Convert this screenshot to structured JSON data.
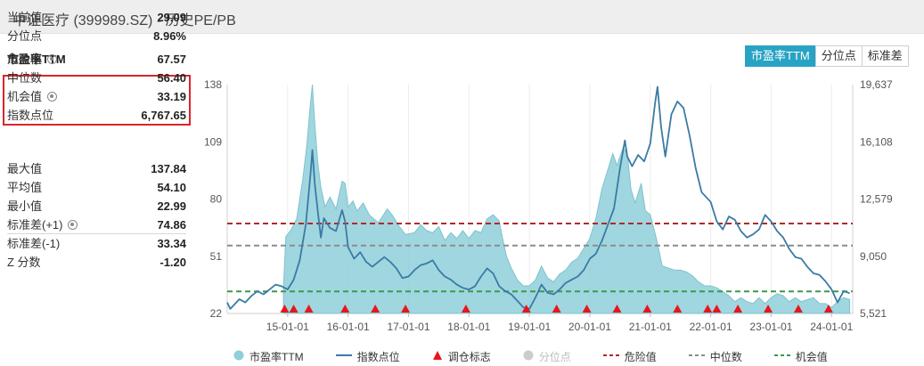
{
  "window": {
    "title": "中证医疗 (399989.SZ) - 历史PE/PB"
  },
  "panel": {
    "title": "市盈率TTM"
  },
  "tabs": [
    {
      "label": "市盈率TTM",
      "active": true
    },
    {
      "label": "分位点",
      "active": false
    },
    {
      "label": "标准差",
      "active": false
    }
  ],
  "stats": {
    "group1": [
      {
        "label": "当前值",
        "value": "29.09",
        "gear": false
      },
      {
        "label": "分位点",
        "value": "8.96%",
        "gear": false
      },
      {
        "label": "危险值",
        "value": "67.57",
        "gear": true
      },
      {
        "label": "中位数",
        "value": "56.40",
        "gear": false
      },
      {
        "label": "机会值",
        "value": "33.19",
        "gear": true
      },
      {
        "label": "指数点位",
        "value": "6,767.65",
        "gear": false
      }
    ],
    "group2": [
      {
        "label": "最大值",
        "value": "137.84",
        "gear": false
      },
      {
        "label": "平均值",
        "value": "54.10",
        "gear": false
      },
      {
        "label": "最小值",
        "value": "22.99",
        "gear": false
      },
      {
        "label": "标准差(+1)",
        "value": "74.86",
        "gear": true
      },
      {
        "label": "标准差(-1)",
        "value": "33.34",
        "gear": false
      },
      {
        "label": "Z 分数",
        "value": "-1.20",
        "gear": false
      }
    ]
  },
  "colors": {
    "pe_fill": "#8fcfd9",
    "index_line": "#3a7ba5",
    "marker": "#e8151b",
    "danger": "#b02a2a",
    "median": "#8c8c8c",
    "opportunity": "#3a9a4a",
    "accent": "#29a3c4"
  },
  "legend": [
    {
      "label": "市盈率TTM",
      "symbol": "circle",
      "color": "#8fcfd9",
      "active": true
    },
    {
      "label": "指数点位",
      "symbol": "line",
      "color": "#3a7ba5",
      "active": true
    },
    {
      "label": "调仓标志",
      "symbol": "triangle",
      "color": "#e8151b",
      "active": true
    },
    {
      "label": "分位点",
      "symbol": "circle",
      "color": "#cccccc",
      "active": false
    },
    {
      "label": "危险值",
      "symbol": "dash",
      "color": "#b02a2a",
      "active": true
    },
    {
      "label": "中位数",
      "symbol": "dash",
      "color": "#8c8c8c",
      "active": true
    },
    {
      "label": "机会值",
      "symbol": "dash",
      "color": "#3a9a4a",
      "active": true
    }
  ],
  "chart_data": {
    "type": "area",
    "x_ticks": [
      "15-01-01",
      "16-01-01",
      "17-01-01",
      "18-01-01",
      "19-01-01",
      "20-01-01",
      "21-01-01",
      "22-01-01",
      "23-01-01",
      "24-01-01"
    ],
    "x_range": [
      2014.0,
      2024.35
    ],
    "y_left": {
      "ticks": [
        "138",
        "109",
        "80",
        "51",
        "22"
      ],
      "range": [
        22,
        138
      ]
    },
    "y_right": {
      "ticks": [
        "19,637",
        "16,108",
        "12,579",
        "9,050",
        "5,521"
      ],
      "range": [
        5521,
        19637
      ]
    },
    "reference_lines": {
      "danger": 67.57,
      "median": 56.4,
      "opportunity": 33.19
    },
    "series": [
      {
        "name": "市盈率TTM",
        "axis": "left",
        "points": [
          [
            2014.93,
            35
          ],
          [
            2014.97,
            61
          ],
          [
            2015.05,
            64
          ],
          [
            2015.15,
            70
          ],
          [
            2015.25,
            90
          ],
          [
            2015.32,
            108
          ],
          [
            2015.37,
            126
          ],
          [
            2015.41,
            138
          ],
          [
            2015.45,
            118
          ],
          [
            2015.5,
            98
          ],
          [
            2015.55,
            86
          ],
          [
            2015.62,
            76
          ],
          [
            2015.7,
            81
          ],
          [
            2015.8,
            75
          ],
          [
            2015.9,
            89
          ],
          [
            2015.95,
            88
          ],
          [
            2016.0,
            76
          ],
          [
            2016.08,
            79
          ],
          [
            2016.15,
            74
          ],
          [
            2016.25,
            78
          ],
          [
            2016.35,
            72
          ],
          [
            2016.5,
            68
          ],
          [
            2016.65,
            75
          ],
          [
            2016.75,
            71
          ],
          [
            2016.85,
            66
          ],
          [
            2016.95,
            62
          ],
          [
            2017.1,
            63
          ],
          [
            2017.2,
            67
          ],
          [
            2017.3,
            64
          ],
          [
            2017.4,
            63
          ],
          [
            2017.5,
            66
          ],
          [
            2017.6,
            59
          ],
          [
            2017.7,
            63
          ],
          [
            2017.8,
            60
          ],
          [
            2017.9,
            64
          ],
          [
            2018.0,
            60
          ],
          [
            2018.1,
            64
          ],
          [
            2018.2,
            63
          ],
          [
            2018.3,
            70
          ],
          [
            2018.4,
            72
          ],
          [
            2018.5,
            69
          ],
          [
            2018.55,
            61
          ],
          [
            2018.62,
            51
          ],
          [
            2018.7,
            45
          ],
          [
            2018.8,
            39
          ],
          [
            2018.9,
            36
          ],
          [
            2019.0,
            36
          ],
          [
            2019.1,
            39
          ],
          [
            2019.2,
            46
          ],
          [
            2019.3,
            40
          ],
          [
            2019.4,
            38
          ],
          [
            2019.5,
            42
          ],
          [
            2019.6,
            44
          ],
          [
            2019.7,
            48
          ],
          [
            2019.8,
            50
          ],
          [
            2019.9,
            55
          ],
          [
            2020.0,
            60
          ],
          [
            2020.1,
            70
          ],
          [
            2020.2,
            85
          ],
          [
            2020.3,
            95
          ],
          [
            2020.38,
            103
          ],
          [
            2020.45,
            97
          ],
          [
            2020.55,
            106
          ],
          [
            2020.62,
            103
          ],
          [
            2020.68,
            85
          ],
          [
            2020.75,
            78
          ],
          [
            2020.85,
            88
          ],
          [
            2020.92,
            74
          ],
          [
            2021.0,
            72
          ],
          [
            2021.1,
            60
          ],
          [
            2021.2,
            46
          ],
          [
            2021.3,
            45
          ],
          [
            2021.4,
            44
          ],
          [
            2021.5,
            44
          ],
          [
            2021.6,
            43
          ],
          [
            2021.7,
            41
          ],
          [
            2021.8,
            38
          ],
          [
            2021.9,
            36
          ],
          [
            2022.0,
            36
          ],
          [
            2022.1,
            35
          ],
          [
            2022.2,
            33
          ],
          [
            2022.3,
            31
          ],
          [
            2022.4,
            28
          ],
          [
            2022.5,
            30
          ],
          [
            2022.6,
            28
          ],
          [
            2022.7,
            27
          ],
          [
            2022.8,
            30
          ],
          [
            2022.9,
            27
          ],
          [
            2023.0,
            30
          ],
          [
            2023.1,
            32
          ],
          [
            2023.2,
            31
          ],
          [
            2023.3,
            28
          ],
          [
            2023.4,
            30
          ],
          [
            2023.5,
            28
          ],
          [
            2023.6,
            29
          ],
          [
            2023.7,
            30
          ],
          [
            2023.8,
            27
          ],
          [
            2023.9,
            27
          ],
          [
            2024.0,
            25
          ],
          [
            2024.1,
            28
          ],
          [
            2024.2,
            30
          ],
          [
            2024.3,
            29.09
          ]
        ]
      },
      {
        "name": "指数点位",
        "axis": "right",
        "points": [
          [
            2014.0,
            6200
          ],
          [
            2014.05,
            5800
          ],
          [
            2014.1,
            6000
          ],
          [
            2014.2,
            6400
          ],
          [
            2014.3,
            6200
          ],
          [
            2014.4,
            6600
          ],
          [
            2014.5,
            6900
          ],
          [
            2014.6,
            6700
          ],
          [
            2014.7,
            7000
          ],
          [
            2014.8,
            7300
          ],
          [
            2014.9,
            7200
          ],
          [
            2015.0,
            7000
          ],
          [
            2015.1,
            7600
          ],
          [
            2015.2,
            8800
          ],
          [
            2015.3,
            11000
          ],
          [
            2015.38,
            14200
          ],
          [
            2015.41,
            15600
          ],
          [
            2015.45,
            13500
          ],
          [
            2015.5,
            11800
          ],
          [
            2015.55,
            10200
          ],
          [
            2015.6,
            11400
          ],
          [
            2015.7,
            10800
          ],
          [
            2015.8,
            10600
          ],
          [
            2015.9,
            11900
          ],
          [
            2015.95,
            11200
          ],
          [
            2016.0,
            9600
          ],
          [
            2016.1,
            8900
          ],
          [
            2016.2,
            9300
          ],
          [
            2016.3,
            8700
          ],
          [
            2016.4,
            8400
          ],
          [
            2016.5,
            8700
          ],
          [
            2016.6,
            9000
          ],
          [
            2016.7,
            8700
          ],
          [
            2016.8,
            8300
          ],
          [
            2016.9,
            7700
          ],
          [
            2017.0,
            7800
          ],
          [
            2017.1,
            8200
          ],
          [
            2017.2,
            8500
          ],
          [
            2017.3,
            8600
          ],
          [
            2017.4,
            8800
          ],
          [
            2017.5,
            8200
          ],
          [
            2017.6,
            7800
          ],
          [
            2017.7,
            7600
          ],
          [
            2017.8,
            7300
          ],
          [
            2017.9,
            7100
          ],
          [
            2018.0,
            7000
          ],
          [
            2018.1,
            7200
          ],
          [
            2018.2,
            7800
          ],
          [
            2018.3,
            8300
          ],
          [
            2018.4,
            8000
          ],
          [
            2018.5,
            7200
          ],
          [
            2018.6,
            6900
          ],
          [
            2018.7,
            6700
          ],
          [
            2018.8,
            6300
          ],
          [
            2018.9,
            5900
          ],
          [
            2019.0,
            5800
          ],
          [
            2019.1,
            6500
          ],
          [
            2019.2,
            7300
          ],
          [
            2019.3,
            6800
          ],
          [
            2019.4,
            6700
          ],
          [
            2019.5,
            7000
          ],
          [
            2019.6,
            7400
          ],
          [
            2019.7,
            7600
          ],
          [
            2019.8,
            7800
          ],
          [
            2019.9,
            8200
          ],
          [
            2020.0,
            8900
          ],
          [
            2020.1,
            9200
          ],
          [
            2020.2,
            10000
          ],
          [
            2020.3,
            11000
          ],
          [
            2020.4,
            12000
          ],
          [
            2020.5,
            14500
          ],
          [
            2020.58,
            16200
          ],
          [
            2020.62,
            15200
          ],
          [
            2020.7,
            14600
          ],
          [
            2020.8,
            15300
          ],
          [
            2020.9,
            14900
          ],
          [
            2021.0,
            16000
          ],
          [
            2021.08,
            18500
          ],
          [
            2021.12,
            19500
          ],
          [
            2021.18,
            17000
          ],
          [
            2021.25,
            15200
          ],
          [
            2021.35,
            17800
          ],
          [
            2021.45,
            18600
          ],
          [
            2021.55,
            18200
          ],
          [
            2021.65,
            16500
          ],
          [
            2021.75,
            14500
          ],
          [
            2021.85,
            13000
          ],
          [
            2022.0,
            12400
          ],
          [
            2022.1,
            11200
          ],
          [
            2022.2,
            10700
          ],
          [
            2022.3,
            11500
          ],
          [
            2022.4,
            11300
          ],
          [
            2022.5,
            10600
          ],
          [
            2022.6,
            10200
          ],
          [
            2022.7,
            10400
          ],
          [
            2022.8,
            10700
          ],
          [
            2022.9,
            11600
          ],
          [
            2023.0,
            11200
          ],
          [
            2023.1,
            10600
          ],
          [
            2023.2,
            10200
          ],
          [
            2023.3,
            9500
          ],
          [
            2023.4,
            9000
          ],
          [
            2023.5,
            8900
          ],
          [
            2023.6,
            8400
          ],
          [
            2023.7,
            8000
          ],
          [
            2023.8,
            7900
          ],
          [
            2023.9,
            7500
          ],
          [
            2024.0,
            7000
          ],
          [
            2024.1,
            6200
          ],
          [
            2024.2,
            6900
          ],
          [
            2024.3,
            6767.65
          ]
        ]
      }
    ],
    "markers": {
      "name": "调仓标志",
      "x": [
        2014.95,
        2015.1,
        2015.35,
        2015.95,
        2016.45,
        2016.95,
        2017.95,
        2018.95,
        2019.45,
        2019.95,
        2020.45,
        2020.95,
        2021.45,
        2021.95,
        2022.1,
        2022.45,
        2022.95,
        2023.45,
        2023.95
      ]
    }
  }
}
